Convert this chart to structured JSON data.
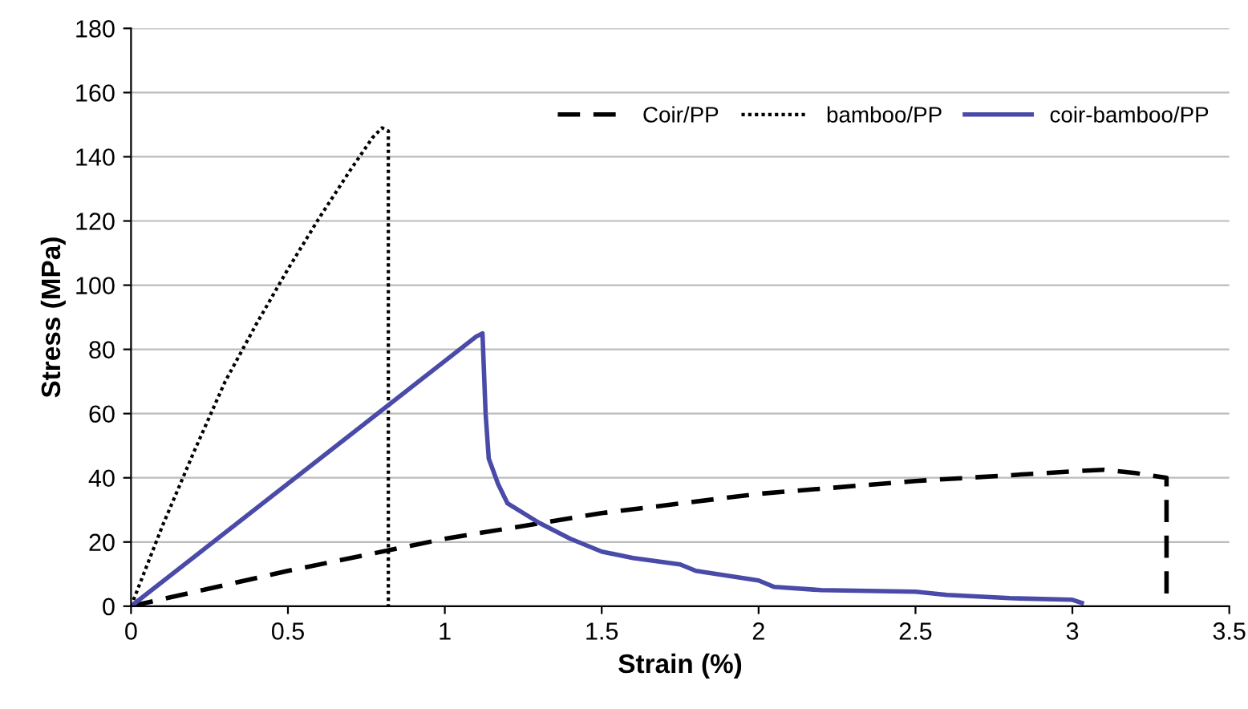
{
  "chart_data": {
    "type": "line",
    "xlabel": "Strain (%)",
    "ylabel": "Stress (MPa)",
    "xlim": [
      0,
      3.5
    ],
    "xticks": [
      0,
      0.5,
      1,
      1.5,
      2,
      2.5,
      3,
      3.5
    ],
    "ylim": [
      0,
      180
    ],
    "yticks": [
      0,
      20,
      40,
      60,
      80,
      100,
      120,
      140,
      160,
      180
    ],
    "grid": "y",
    "legend": "top right",
    "marker": "none",
    "series": [
      {
        "name": "Coir/PP",
        "color": "#000000",
        "line_style": "dashed",
        "x": [
          0,
          0.5,
          1,
          1.5,
          2,
          2.5,
          3,
          3.1,
          3.2,
          3.3,
          3.3
        ],
        "values": [
          0,
          11,
          21,
          29,
          35,
          39,
          42,
          42.5,
          41.5,
          40,
          0
        ]
      },
      {
        "name": "bamboo/PP",
        "color": "#000000",
        "line_style": "dotted",
        "x": [
          0,
          0.1,
          0.2,
          0.3,
          0.4,
          0.5,
          0.6,
          0.7,
          0.77,
          0.8,
          0.82,
          0.82
        ],
        "values": [
          0,
          25,
          48,
          70,
          88,
          105,
          121,
          136,
          146,
          149,
          148,
          0
        ]
      },
      {
        "name": "coir-bamboo/PP",
        "color": "#4a4aa8",
        "line_style": "solid",
        "x": [
          0,
          1.1,
          1.12,
          1.13,
          1.14,
          1.17,
          1.2,
          1.3,
          1.4,
          1.5,
          1.6,
          1.75,
          1.8,
          1.9,
          2.0,
          2.05,
          2.2,
          2.5,
          2.6,
          2.8,
          3.0,
          3.03
        ],
        "values": [
          0,
          84,
          85,
          60,
          46,
          38,
          32,
          26,
          21,
          17,
          15,
          13,
          11,
          9.5,
          8,
          6,
          5,
          4.5,
          3.5,
          2.5,
          2,
          1
        ]
      }
    ]
  }
}
